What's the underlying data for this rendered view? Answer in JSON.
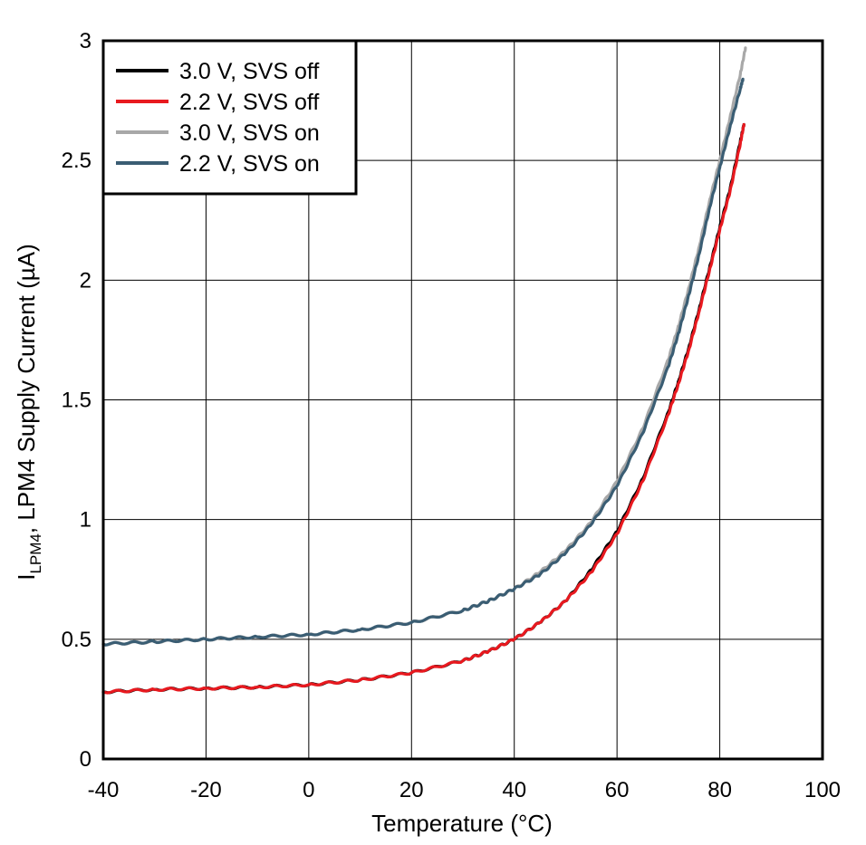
{
  "chart_data": {
    "type": "line",
    "title": "",
    "xlabel": "Temperature (°C)",
    "ylabel_main": "I",
    "ylabel_sub": "LPM4",
    "ylabel_rest": ", LPM4 Supply Current (µA)",
    "xlim": [
      -40,
      100
    ],
    "ylim": [
      0,
      3
    ],
    "xticks": [
      -40,
      -20,
      0,
      20,
      40,
      60,
      80,
      100
    ],
    "yticks": [
      0,
      0.5,
      1,
      1.5,
      2,
      2.5,
      3
    ],
    "ytick_labels": [
      "0",
      "0.5",
      "1",
      "1.5",
      "2",
      "2.5",
      "3"
    ],
    "grid": true,
    "legend_position": "top-left",
    "series": [
      {
        "name": "3.0 V, SVS off",
        "color": "#000000",
        "x": [
          -40,
          -30,
          -20,
          -10,
          0,
          10,
          20,
          30,
          35,
          40,
          45,
          50,
          55,
          60,
          65,
          70,
          72,
          74,
          76,
          78,
          80,
          82,
          84,
          84.7
        ],
        "y": [
          0.28,
          0.29,
          0.295,
          0.3,
          0.31,
          0.33,
          0.36,
          0.41,
          0.45,
          0.5,
          0.57,
          0.66,
          0.79,
          0.95,
          1.17,
          1.45,
          1.58,
          1.72,
          1.88,
          2.05,
          2.22,
          2.38,
          2.58,
          2.65
        ]
      },
      {
        "name": "2.2 V, SVS off",
        "color": "#e8191f",
        "x": [
          -40,
          -30,
          -20,
          -10,
          0,
          10,
          20,
          30,
          35,
          40,
          45,
          50,
          55,
          60,
          65,
          70,
          72,
          74,
          76,
          78,
          80,
          82,
          84,
          84.7
        ],
        "y": [
          0.28,
          0.29,
          0.295,
          0.3,
          0.31,
          0.33,
          0.36,
          0.41,
          0.45,
          0.5,
          0.57,
          0.66,
          0.78,
          0.94,
          1.16,
          1.44,
          1.57,
          1.71,
          1.87,
          2.04,
          2.21,
          2.37,
          2.57,
          2.65
        ]
      },
      {
        "name": "3.0 V, SVS on",
        "color": "#a8a8a8",
        "x": [
          -40,
          -30,
          -20,
          -10,
          0,
          10,
          20,
          30,
          35,
          40,
          45,
          50,
          55,
          60,
          65,
          70,
          72,
          74,
          76,
          78,
          80,
          82,
          84,
          85
        ],
        "y": [
          0.48,
          0.49,
          0.5,
          0.51,
          0.52,
          0.54,
          0.57,
          0.62,
          0.66,
          0.71,
          0.78,
          0.87,
          0.99,
          1.16,
          1.38,
          1.67,
          1.81,
          1.97,
          2.14,
          2.33,
          2.5,
          2.68,
          2.86,
          2.97
        ]
      },
      {
        "name": "2.2 V, SVS on",
        "color": "#3a5d73",
        "x": [
          -40,
          -30,
          -20,
          -10,
          0,
          10,
          20,
          30,
          35,
          40,
          45,
          50,
          55,
          60,
          65,
          70,
          72,
          74,
          76,
          78,
          80,
          82,
          84,
          84.5
        ],
        "y": [
          0.48,
          0.49,
          0.5,
          0.51,
          0.52,
          0.54,
          0.57,
          0.62,
          0.66,
          0.71,
          0.77,
          0.86,
          0.98,
          1.14,
          1.36,
          1.64,
          1.78,
          1.94,
          2.11,
          2.3,
          2.47,
          2.64,
          2.8,
          2.84
        ]
      }
    ]
  }
}
